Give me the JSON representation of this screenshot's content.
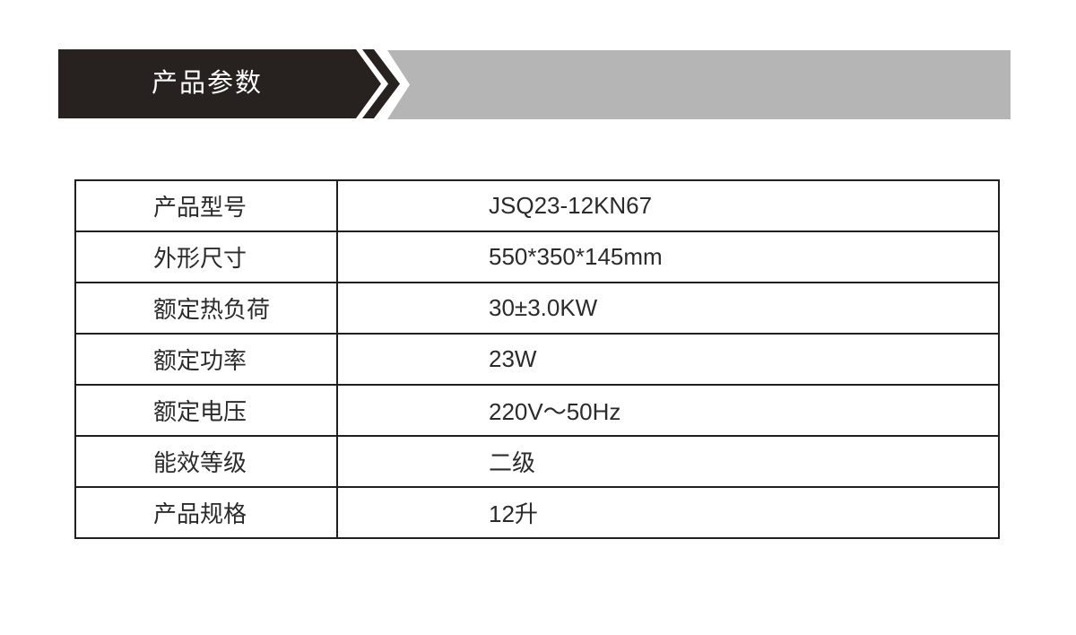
{
  "header": {
    "title": "产品参数"
  },
  "colors": {
    "banner_black": "#272120",
    "banner_gray": "#b5b5b5",
    "table_border": "#1f1f1f",
    "text": "#2b2b2b",
    "title_text": "#ffffff"
  },
  "table": {
    "rows": [
      {
        "label": "产品型号",
        "value": "JSQ23-12KN67"
      },
      {
        "label": "外形尺寸",
        "value": "550*350*145mm"
      },
      {
        "label": "额定热负荷",
        "value": "30±3.0KW"
      },
      {
        "label": "额定功率",
        "value": "23W"
      },
      {
        "label": "额定电压",
        "value": "220V～50Hz"
      },
      {
        "label": "能效等级",
        "value": "二级"
      },
      {
        "label": "产品规格",
        "value": "12升"
      }
    ]
  }
}
